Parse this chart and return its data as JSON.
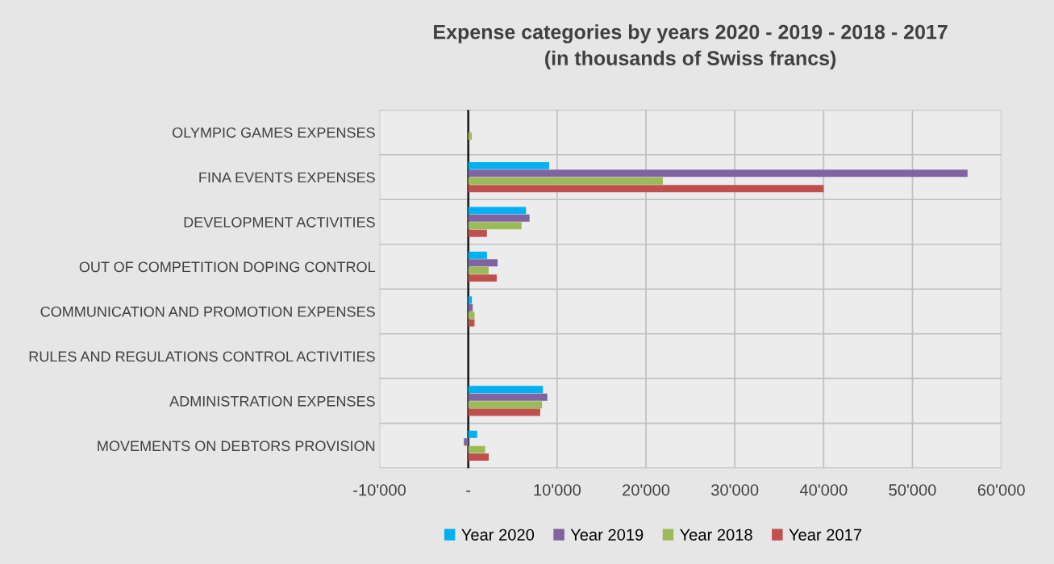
{
  "chart_data": {
    "type": "bar",
    "orientation": "horizontal",
    "title": "Expense categories by years 2020 - 2019 - 2018 - 2017\n(in thousands of Swiss francs)",
    "categories": [
      "OLYMPIC GAMES EXPENSES",
      "FINA EVENTS EXPENSES",
      "DEVELOPMENT ACTIVITIES",
      "OUT OF COMPETITION DOPING CONTROL",
      "COMMUNICATION AND PROMOTION EXPENSES",
      "RULES AND REGULATIONS CONTROL ACTIVITIES",
      "ADMINISTRATION EXPENSES",
      "MOVEMENTS ON DEBTORS PROVISION"
    ],
    "series": [
      {
        "name": "Year 2020",
        "color": "#00b0f0",
        "values": [
          0,
          9100,
          6500,
          2100,
          400,
          0,
          8400,
          1000
        ]
      },
      {
        "name": "Year 2019",
        "color": "#8064a2",
        "values": [
          0,
          56200,
          6900,
          3300,
          500,
          0,
          8900,
          -500
        ]
      },
      {
        "name": "Year 2018",
        "color": "#9bbb59",
        "values": [
          400,
          21900,
          6000,
          2300,
          700,
          0,
          8300,
          1900
        ]
      },
      {
        "name": "Year 2017",
        "color": "#c0504d",
        "values": [
          0,
          40000,
          2100,
          3200,
          700,
          0,
          8100,
          2300
        ]
      }
    ],
    "xlim": [
      -10000,
      60000
    ],
    "xticks": [
      {
        "value": -10000,
        "label": "-10'000"
      },
      {
        "value": 0,
        "label": "-"
      },
      {
        "value": 10000,
        "label": "10'000"
      },
      {
        "value": 20000,
        "label": "20'000"
      },
      {
        "value": 30000,
        "label": "30'000"
      },
      {
        "value": 40000,
        "label": "40'000"
      },
      {
        "value": 50000,
        "label": "50'000"
      },
      {
        "value": 60000,
        "label": "60'000"
      }
    ],
    "grid": true,
    "legend": "bottom"
  }
}
